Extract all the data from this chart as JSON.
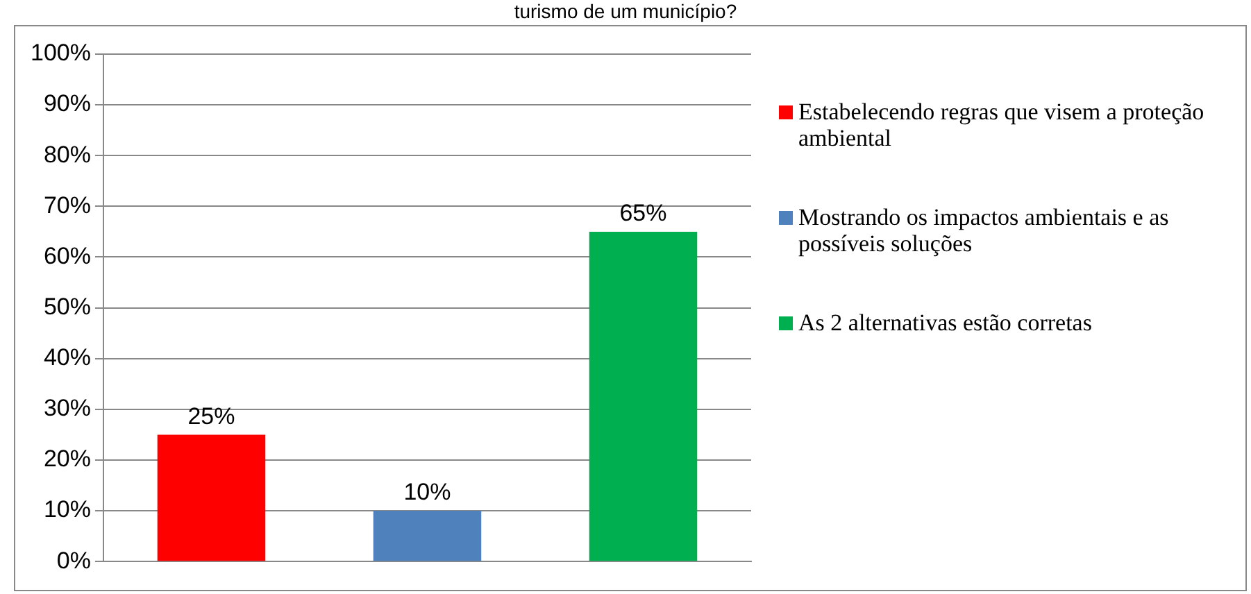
{
  "chart_data": {
    "type": "bar",
    "title": "turismo de um município?",
    "categories": [
      null,
      null,
      null
    ],
    "series": [
      {
        "name": "Estabelecendo regras que visem a proteção ambiental",
        "color": "#ff0000",
        "values": [
          25,
          null,
          null
        ],
        "value_labels": [
          "25%",
          null,
          null
        ]
      },
      {
        "name": "Mostrando os impactos ambientais e as possíveis soluções",
        "color": "#4f81bd",
        "values": [
          null,
          10,
          null
        ],
        "value_labels": [
          null,
          "10%",
          null
        ]
      },
      {
        "name": "As 2 alternativas estão corretas",
        "color": "#00b050",
        "values": [
          null,
          null,
          65
        ],
        "value_labels": [
          null,
          null,
          "65%"
        ]
      }
    ],
    "ylim": [
      0,
      100
    ],
    "yticks": [
      {
        "value": 0,
        "label": "0%"
      },
      {
        "value": 10,
        "label": "10%"
      },
      {
        "value": 20,
        "label": "20%"
      },
      {
        "value": 30,
        "label": "30%"
      },
      {
        "value": 40,
        "label": "40%"
      },
      {
        "value": 50,
        "label": "50%"
      },
      {
        "value": 60,
        "label": "60%"
      },
      {
        "value": 70,
        "label": "70%"
      },
      {
        "value": 80,
        "label": "80%"
      },
      {
        "value": 90,
        "label": "90%"
      },
      {
        "value": 100,
        "label": "100%"
      }
    ],
    "grid": "y",
    "legend": "right"
  }
}
